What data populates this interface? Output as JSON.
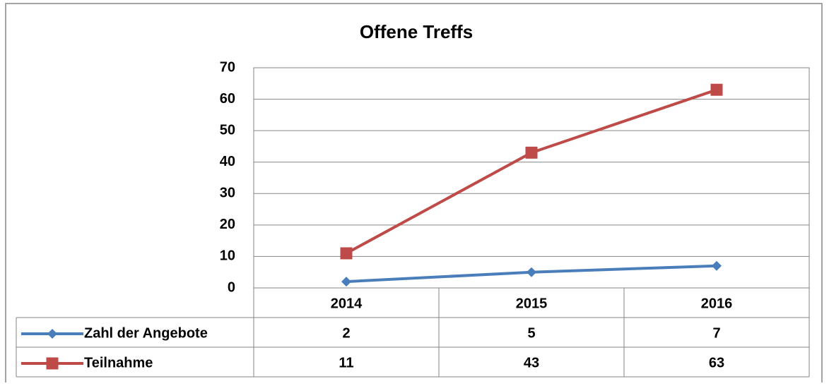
{
  "chart_data": {
    "type": "line",
    "title": "Offene Treffs",
    "categories": [
      "2014",
      "2015",
      "2016"
    ],
    "series": [
      {
        "name": "Zahl der Angebote",
        "color": "#4a7ebb",
        "marker": "diamond",
        "values": [
          2,
          5,
          7
        ]
      },
      {
        "name": "Teilnahme",
        "color": "#be4b48",
        "marker": "square",
        "values": [
          11,
          43,
          63
        ]
      }
    ],
    "ylim": [
      0,
      70
    ],
    "yticks": [
      0,
      10,
      20,
      30,
      40,
      50,
      60,
      70
    ],
    "grid": true,
    "data_table": true
  }
}
